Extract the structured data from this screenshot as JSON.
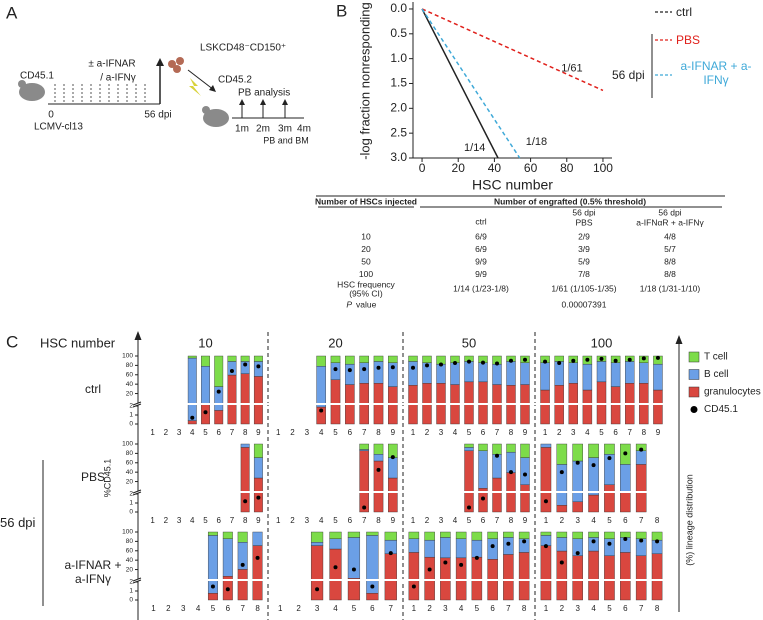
{
  "panel_a": {
    "label": "A",
    "treatment": [
      "± a-IFNAR",
      "/ a-IFNγ"
    ],
    "donor": "CD45.1",
    "infection": "LCMV-cl13",
    "timeline": [
      "0",
      "56 dpi"
    ],
    "cells": "LSKCD48⁻CD150⁺",
    "recipient": "CD45.2",
    "analysis": "PB analysis",
    "timepoints": [
      "1m",
      "2m",
      "3m",
      "4m"
    ],
    "endpoint": "PB and BM"
  },
  "chart_data": [
    {
      "type": "line",
      "panel": "B",
      "x_label": "HSC number",
      "y_label": "-log fraction nonresponding",
      "xlim": [
        -5,
        105
      ],
      "xticks": [
        0,
        20,
        40,
        60,
        80,
        100
      ],
      "ylim": [
        -0.1,
        3.0
      ],
      "y_inverted": true,
      "yticks": [
        {
          "value": 0,
          "label": "0.0"
        },
        0.5,
        {
          "value": 1,
          "label": "1.0"
        },
        1.5,
        {
          "value": 2,
          "label": "2.0"
        },
        2.5,
        {
          "value": 3,
          "label": "3.0"
        }
      ],
      "legend_group": "56 dpi",
      "series": [
        {
          "name": "ctrl",
          "color": "#222222",
          "dash": false,
          "label": "1/14",
          "x": [
            0,
            42
          ],
          "values": [
            0,
            3.0
          ]
        },
        {
          "name": "PBS",
          "color": "#e0201b",
          "dash": true,
          "label": "1/61",
          "x": [
            0,
            100
          ],
          "values": [
            0,
            1.64
          ]
        },
        {
          "name": "a-IFNAR + a-IFNγ",
          "color": "#3fa9d8",
          "dash": true,
          "label": "1/18",
          "x": [
            0,
            54
          ],
          "values": [
            0,
            3.0
          ]
        }
      ]
    },
    {
      "type": "stacked-bar",
      "panel": "C",
      "x_label": "HSC number",
      "y_label": "%CD45.1",
      "y2_label": "(%) lineage distribution",
      "row_group": "56 dpi",
      "ylim": [
        0,
        100
      ],
      "ybreak": 2,
      "yticks": [
        0,
        1,
        2,
        20,
        40,
        60,
        80,
        100
      ],
      "y2lim": [
        0,
        100
      ],
      "groups": [
        "10",
        "20",
        "50",
        "100"
      ],
      "series": [
        {
          "name": "T cell",
          "color": "#7ddc4a",
          "axis": "y2"
        },
        {
          "name": "B cell",
          "color": "#6b9fe6",
          "axis": "y2"
        },
        {
          "name": "granulocytes",
          "color": "#d9473f",
          "axis": "y2"
        },
        {
          "name": "CD45.1",
          "color": "#000000"
        }
      ],
      "rows": [
        {
          "name": "ctrl",
          "panels": [
            {
              "categories": [
                "1",
                "2",
                "3",
                "4",
                "5",
                "6",
                "7",
                "8",
                "9"
              ],
              "values": [
                [
                  null,
                  null,
                  null,
                  3,
                  15,
                  45,
                  8,
                  8,
                  8
                ],
                [
                  null,
                  null,
                  null,
                  92,
                  55,
                  35,
                  20,
                  18,
                  22
                ],
                [
                  null,
                  null,
                  null,
                  5,
                  30,
                  20,
                  72,
                  74,
                  70
                ],
                [
                  null,
                  null,
                  null,
                  0.7,
                  1.3,
                  24,
                  68,
                  82,
                  78
                ]
              ]
            },
            {
              "categories": [
                "1",
                "2",
                "3",
                "4",
                "5",
                "6",
                "7",
                "8",
                "9"
              ],
              "values": [
                [
                  null,
                  null,
                  null,
                  15,
                  10,
                  12,
                  10,
                  8,
                  10
                ],
                [
                  null,
                  null,
                  null,
                  60,
                  25,
                  30,
                  30,
                  32,
                  35
                ],
                [
                  null,
                  null,
                  null,
                  25,
                  65,
                  58,
                  60,
                  60,
                  55
                ],
                [
                  null,
                  null,
                  null,
                  1.5,
                  72,
                  70,
                  72,
                  75,
                  76
                ]
              ]
            },
            {
              "categories": [
                "1",
                "2",
                "3",
                "4",
                "5",
                "6",
                "7",
                "8",
                "9"
              ],
              "values": [
                [
                  8,
                  10,
                  12,
                  10,
                  8,
                  10,
                  12,
                  8,
                  10
                ],
                [
                  35,
                  30,
                  28,
                  32,
                  30,
                  28,
                  30,
                  35,
                  32
                ],
                [
                  57,
                  60,
                  60,
                  58,
                  62,
                  62,
                  58,
                  57,
                  58
                ],
                [
                  75,
                  80,
                  82,
                  85,
                  88,
                  86,
                  84,
                  90,
                  92
                ]
              ]
            },
            {
              "categories": [
                "1",
                "2",
                "3",
                "4",
                "5",
                "6",
                "7",
                "8",
                "9"
              ],
              "values": [
                [
                  10,
                  8,
                  10,
                  12,
                  8,
                  10,
                  8,
                  10,
                  12
                ],
                [
                  40,
                  35,
                  30,
                  38,
                  30,
                  35,
                  32,
                  30,
                  38
                ],
                [
                  50,
                  57,
                  60,
                  50,
                  62,
                  55,
                  60,
                  60,
                  50
                ],
                [
                  88,
                  85,
                  90,
                  92,
                  94,
                  90,
                  92,
                  95,
                  96
                ]
              ]
            }
          ]
        },
        {
          "name": "PBS",
          "panels": [
            {
              "categories": [
                "1",
                "2",
                "3",
                "4",
                "5",
                "6",
                "7",
                "8",
                "9"
              ],
              "values": [
                [
                  null,
                  null,
                  null,
                  null,
                  null,
                  null,
                  null,
                  0,
                  20
                ],
                [
                  null,
                  null,
                  null,
                  null,
                  null,
                  null,
                  null,
                  5,
                  30
                ],
                [
                  null,
                  null,
                  null,
                  null,
                  null,
                  null,
                  null,
                  95,
                  50
                ],
                [
                  null,
                  null,
                  null,
                  null,
                  null,
                  null,
                  null,
                  1.2,
                  1.6
                ]
              ]
            },
            {
              "categories": [
                "1",
                "2",
                "3",
                "4",
                "5",
                "6",
                "7",
                "8",
                "9"
              ],
              "values": [
                [
                  null,
                  null,
                  null,
                  null,
                  null,
                  null,
                  8,
                  15,
                  20
                ],
                [
                  null,
                  null,
                  null,
                  null,
                  null,
                  null,
                  2,
                  10,
                  30
                ],
                [
                  null,
                  null,
                  null,
                  null,
                  null,
                  null,
                  90,
                  75,
                  50
                ],
                [
                  null,
                  null,
                  null,
                  null,
                  null,
                  null,
                  0.5,
                  45,
                  72
                ]
              ]
            },
            {
              "categories": [
                "1",
                "2",
                "3",
                "4",
                "5",
                "6",
                "7",
                "8",
                "9"
              ],
              "values": [
                [
                  null,
                  null,
                  null,
                  null,
                  5,
                  10,
                  15,
                  12,
                  20
                ],
                [
                  null,
                  null,
                  null,
                  null,
                  5,
                  55,
                  35,
                  30,
                  40
                ],
                [
                  null,
                  null,
                  null,
                  null,
                  90,
                  35,
                  50,
                  58,
                  40
                ],
                [
                  null,
                  null,
                  null,
                  null,
                  0.5,
                  1.5,
                  75,
                  40,
                  35
                ]
              ]
            },
            {
              "categories": [
                "1",
                "2",
                "3",
                "4",
                "5",
                "6",
                "7",
                "8"
              ],
              "values": [
                [
                  0,
                  30,
                  25,
                  20,
                  15,
                  30,
                  10,
                  null
                ],
                [
                  5,
                  60,
                  60,
                  55,
                  45,
                  40,
                  20,
                  null
                ],
                [
                  95,
                  10,
                  15,
                  25,
                  40,
                  30,
                  70,
                  null
                ],
                [
                  1.2,
                  40,
                  60,
                  55,
                  70,
                  80,
                  88,
                  null
                ]
              ]
            }
          ]
        },
        {
          "name": "a-IFNAR + a-IFNγ",
          "panels": [
            {
              "categories": [
                "1",
                "2",
                "3",
                "4",
                "5",
                "6",
                "7",
                "8"
              ],
              "values": [
                [
                  null,
                  null,
                  null,
                  null,
                  5,
                  10,
                  15,
                  0
                ],
                [
                  null,
                  null,
                  null,
                  null,
                  85,
                  55,
                  40,
                  20
                ],
                [
                  null,
                  null,
                  null,
                  null,
                  10,
                  35,
                  45,
                  80
                ],
                [
                  null,
                  null,
                  null,
                  null,
                  1.5,
                  1.2,
                  30,
                  45
                ]
              ]
            },
            {
              "categories": [
                "1",
                "2",
                "3",
                "4",
                "5",
                "6",
                "7"
              ],
              "values": [
                [
                  null,
                  null,
                  15,
                  10,
                  8,
                  5,
                  12
                ],
                [
                  null,
                  null,
                  5,
                  15,
                  60,
                  85,
                  20
                ],
                [
                  null,
                  null,
                  80,
                  75,
                  32,
                  10,
                  68
                ],
                [
                  null,
                  null,
                  1.2,
                  25,
                  20,
                  1.5,
                  55
                ]
              ]
            },
            {
              "categories": [
                "1",
                "2",
                "3",
                "4",
                "5",
                "6",
                "7",
                "8"
              ],
              "values": [
                [
                  10,
                  12,
                  8,
                  10,
                  12,
                  10,
                  8,
                  10
                ],
                [
                  20,
                  25,
                  30,
                  28,
                  25,
                  30,
                  25,
                  20
                ],
                [
                  70,
                  63,
                  62,
                  62,
                  63,
                  60,
                  67,
                  70
                ],
                [
                  1.5,
                  20,
                  35,
                  30,
                  45,
                  70,
                  75,
                  80
                ]
              ]
            },
            {
              "categories": [
                "1",
                "2",
                "3",
                "4",
                "5",
                "6",
                "7",
                "8"
              ],
              "values": [
                [
                  5,
                  8,
                  10,
                  8,
                  10,
                  8,
                  10,
                  12
                ],
                [
                  15,
                  20,
                  25,
                  20,
                  25,
                  22,
                  25,
                  20
                ],
                [
                  80,
                  72,
                  65,
                  72,
                  65,
                  70,
                  65,
                  68
                ],
                [
                  70,
                  35,
                  55,
                  80,
                  75,
                  85,
                  82,
                  80
                ]
              ]
            }
          ]
        }
      ]
    }
  ],
  "table": {
    "headers": [
      "Number of HSCs injected",
      "Number of engrafted (0.5% threshold)"
    ],
    "columns": [
      [
        "ctrl"
      ],
      [
        "56 dpi",
        "PBS"
      ],
      [
        "56 dpi",
        "a-IFNαR + a-IFNγ"
      ]
    ],
    "rows": [
      [
        "10",
        "6/9",
        "2/9",
        "4/8"
      ],
      [
        "20",
        "6/9",
        "3/9",
        "5/7"
      ],
      [
        "50",
        "9/9",
        "5/9",
        "8/8"
      ],
      [
        "100",
        "9/9",
        "7/8",
        "8/8"
      ]
    ],
    "frequency": {
      "label": [
        "HSC frequency",
        "(95% CI)"
      ],
      "values": [
        "1/14 (1/23-1/8)",
        "1/61 (1/105-1/35)",
        "1/18 (1/31-1/10)"
      ]
    },
    "p_value": {
      "label": [
        "P",
        "value"
      ],
      "value": "0.00007391"
    }
  }
}
